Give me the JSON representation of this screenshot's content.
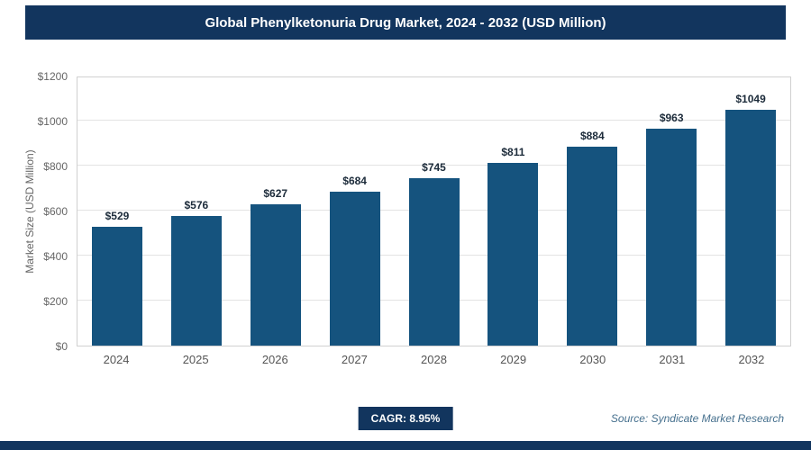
{
  "header": {
    "title": "Global Phenylketonuria Drug Market, 2024 - 2032 (USD Million)"
  },
  "chart_data": {
    "type": "bar",
    "title": "Global Phenylketonuria Drug Market, 2024 - 2032 (USD Million)",
    "categories": [
      "2024",
      "2025",
      "2026",
      "2027",
      "2028",
      "2029",
      "2030",
      "2031",
      "2032"
    ],
    "values": [
      529,
      576,
      627,
      684,
      745,
      811,
      884,
      963,
      1049
    ],
    "value_labels": [
      "$529",
      "$576",
      "$627",
      "$684",
      "$745",
      "$811",
      "$884",
      "$963",
      "$1049"
    ],
    "xlabel": "",
    "ylabel": "Market Size (USD Million)",
    "ylim": [
      0,
      1200
    ],
    "yticks": [
      0,
      200,
      400,
      600,
      800,
      1000,
      1200
    ],
    "ytick_labels": [
      "$0",
      "$200",
      "$400",
      "$600",
      "$800",
      "$1000",
      "$1200"
    ],
    "grid": true,
    "legend": "none",
    "bar_color": "#15537e"
  },
  "footer": {
    "cagr_label": "CAGR: 8.95%",
    "source": "Source: Syndicate Market Research"
  },
  "colors": {
    "header_bg": "#12355e",
    "bar": "#15537e",
    "grid": "#e3e3e3",
    "axis_text": "#666666",
    "value_text": "#1c2b3a",
    "source_text": "#46708e"
  }
}
